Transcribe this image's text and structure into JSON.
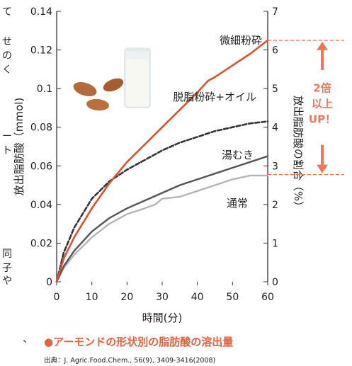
{
  "chart_data": {
    "type": "line",
    "xlabel": "時間(分)",
    "ylabel_left": "放出脂肪酸（mmol)",
    "ylabel_right": "放出脂肪酸の割合（%）",
    "xlim": [
      0,
      60
    ],
    "ylim_left": [
      0,
      0.14
    ],
    "ylim_right": [
      0,
      7
    ],
    "x_ticks": [
      "0",
      "10",
      "20",
      "30",
      "40",
      "50",
      "60"
    ],
    "y_left_ticks": [
      "0",
      "0.02",
      "0.04",
      "0.06",
      "0.08",
      "0.1",
      "0.12",
      "0.14"
    ],
    "y_right_ticks": [
      "0",
      "1",
      "2",
      "3",
      "4",
      "5",
      "6",
      "7"
    ],
    "grid": false,
    "series": [
      {
        "name": "微細粉砕",
        "color": "#d9532f",
        "style": "solid",
        "x": [
          0,
          2,
          5,
          10,
          15,
          20,
          25,
          30,
          35,
          40,
          43,
          45,
          50,
          55,
          60
        ],
        "values": [
          0,
          0.012,
          0.023,
          0.038,
          0.051,
          0.062,
          0.071,
          0.08,
          0.089,
          0.098,
          0.104,
          0.106,
          0.112,
          0.118,
          0.125
        ]
      },
      {
        "name": "脱脂粉砕+オイル",
        "color": "#333333",
        "style": "dashed",
        "x": [
          0,
          2,
          5,
          10,
          15,
          20,
          25,
          30,
          35,
          40,
          45,
          50,
          55,
          60
        ],
        "values": [
          0,
          0.015,
          0.028,
          0.043,
          0.052,
          0.058,
          0.063,
          0.068,
          0.072,
          0.075,
          0.078,
          0.08,
          0.082,
          0.083
        ]
      },
      {
        "name": "湯むき",
        "color": "#555555",
        "style": "solid",
        "x": [
          0,
          2,
          5,
          10,
          15,
          20,
          25,
          30,
          35,
          40,
          45,
          50,
          55,
          60
        ],
        "values": [
          0,
          0.008,
          0.016,
          0.026,
          0.033,
          0.038,
          0.042,
          0.046,
          0.05,
          0.053,
          0.056,
          0.059,
          0.062,
          0.065
        ]
      },
      {
        "name": "通常",
        "color": "#b5b5b5",
        "style": "solid",
        "x": [
          0,
          2,
          5,
          10,
          15,
          20,
          25,
          28,
          30,
          35,
          40,
          45,
          50,
          55,
          60
        ],
        "values": [
          0,
          0.007,
          0.014,
          0.023,
          0.03,
          0.035,
          0.038,
          0.04,
          0.043,
          0.044,
          0.047,
          0.05,
          0.053,
          0.055,
          0.055
        ]
      }
    ],
    "annotation": {
      "lines": [
        "2倍",
        "以上",
        "UP！"
      ],
      "color": "#f0765a",
      "from_y": 0.0555,
      "to_y": 0.125
    }
  },
  "caption": "●アーモンドの形状別の脂肪酸の溶出量",
  "source": "出典：J. Agric.Food.Chem., 56(9), 3409-3416(2008)",
  "edge_text": [
    "て",
    "せ",
    "の",
    "く",
    "ー",
    "ト",
    "同",
    "子",
    "や",
    "、"
  ]
}
